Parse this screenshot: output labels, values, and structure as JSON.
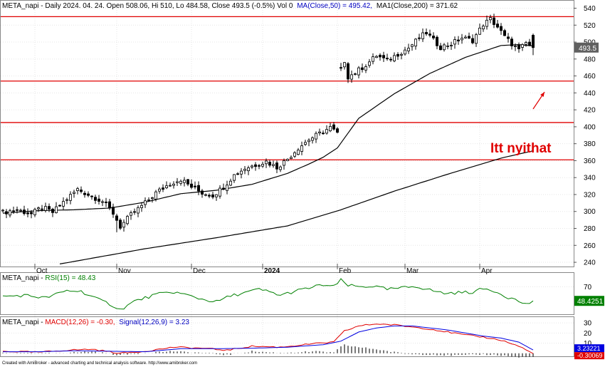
{
  "header": {
    "main_title": "META_napi - Daily 2024. 04. 24. Open 508.06, Hi 510, Lo 484.58, Close 493.5 (-0.5%) Vol 0",
    "ma50_text": "MA(Close,50) = 495.42,",
    "ma200_text": "MA1(Close,200) = 371.62",
    "rsi_title": "META_napi - ",
    "rsi_text": "RSI(15) = 48.43",
    "macd_title": "META_napi - ",
    "macd_text": "MACD(12,26) = -0.30,",
    "signal_text": "Signal(12,26,9) = 3.23"
  },
  "footer_text": "Created with AmiBroker - advanced charting and technical analysis software. http://www.amibroker.com",
  "colors": {
    "ma50": "#000000",
    "ma200": "#000000",
    "hline": "#e00000",
    "annotation": "#e00000",
    "rsi": "#008000",
    "macd": "#e00000",
    "signal": "#0000e0",
    "hist": "#202020",
    "label_blue": "#0000c0",
    "label_green": "#008000"
  },
  "chart_data": [
    {
      "type": "candlestick",
      "title": "META_napi - Daily",
      "ylim": [
        235,
        548
      ],
      "y_ticks": [
        240,
        260,
        280,
        300,
        320,
        340,
        360,
        380,
        400,
        420,
        440,
        460,
        480,
        500,
        520,
        540
      ],
      "x_labels": [
        {
          "label": "Oct",
          "index": 9
        },
        {
          "label": "Nov",
          "index": 32
        },
        {
          "label": "Dec",
          "index": 53
        },
        {
          "label": "2024",
          "index": 73,
          "bold": true
        },
        {
          "label": "Feb",
          "index": 94
        },
        {
          "label": "Mar",
          "index": 113
        },
        {
          "label": "Apr",
          "index": 134
        }
      ],
      "last_price_label": "493.5",
      "horizontal_lines": [
        530,
        454,
        405,
        361
      ],
      "annotation": {
        "text": "Itt nyithat",
        "arrow_from": [
          149,
          421
        ],
        "arrow_to": [
          151,
          441
        ]
      },
      "ohlc_keypoints": [
        [
          0,
          299
        ],
        [
          4,
          302
        ],
        [
          8,
          297
        ],
        [
          11,
          305
        ],
        [
          14,
          299
        ],
        [
          18,
          315
        ],
        [
          21,
          326
        ],
        [
          25,
          318
        ],
        [
          28,
          312
        ],
        [
          31,
          298
        ],
        [
          33,
          282
        ],
        [
          36,
          296
        ],
        [
          40,
          310
        ],
        [
          43,
          322
        ],
        [
          47,
          333
        ],
        [
          50,
          338
        ],
        [
          53,
          329
        ],
        [
          56,
          322
        ],
        [
          59,
          319
        ],
        [
          62,
          329
        ],
        [
          65,
          343
        ],
        [
          68,
          351
        ],
        [
          71,
          355
        ],
        [
          74,
          359
        ],
        [
          77,
          352
        ],
        [
          80,
          362
        ],
        [
          83,
          375
        ],
        [
          86,
          385
        ],
        [
          89,
          392
        ],
        [
          92,
          399
        ],
        [
          94,
          392
        ],
        [
          95,
          467
        ],
        [
          96,
          478
        ],
        [
          97,
          459
        ],
        [
          99,
          464
        ],
        [
          102,
          473
        ],
        [
          105,
          484
        ],
        [
          108,
          478
        ],
        [
          111,
          486
        ],
        [
          114,
          493
        ],
        [
          117,
          505
        ],
        [
          119,
          511
        ],
        [
          121,
          502
        ],
        [
          123,
          494
        ],
        [
          126,
          498
        ],
        [
          129,
          505
        ],
        [
          132,
          502
        ],
        [
          135,
          521
        ],
        [
          137,
          527
        ],
        [
          139,
          518
        ],
        [
          141,
          506
        ],
        [
          143,
          498
        ],
        [
          145,
          490
        ],
        [
          147,
          499
        ],
        [
          149,
          493.5
        ]
      ],
      "ma50_keypoints": [
        [
          0,
          298
        ],
        [
          10,
          301
        ],
        [
          20,
          302
        ],
        [
          30,
          304
        ],
        [
          40,
          311
        ],
        [
          50,
          321
        ],
        [
          60,
          325
        ],
        [
          70,
          332
        ],
        [
          80,
          345
        ],
        [
          86,
          356
        ],
        [
          90,
          364
        ],
        [
          94,
          375
        ],
        [
          100,
          410
        ],
        [
          110,
          439
        ],
        [
          120,
          463
        ],
        [
          130,
          482
        ],
        [
          140,
          496
        ],
        [
          145,
          497
        ],
        [
          149,
          495.42
        ]
      ],
      "ma200_keypoints": [
        [
          16,
          238
        ],
        [
          40,
          256
        ],
        [
          60,
          269
        ],
        [
          80,
          283
        ],
        [
          95,
          302
        ],
        [
          110,
          324
        ],
        [
          125,
          344
        ],
        [
          140,
          363
        ],
        [
          149,
          371.62
        ]
      ]
    },
    {
      "type": "line",
      "title": "RSI(15)",
      "ylim": [
        28,
        90
      ],
      "y_ticks": [
        70
      ],
      "value_label": "48.4251",
      "rsi_keypoints": [
        [
          0,
          55
        ],
        [
          6,
          57
        ],
        [
          12,
          53
        ],
        [
          18,
          64
        ],
        [
          22,
          63
        ],
        [
          27,
          50
        ],
        [
          30,
          44
        ],
        [
          33,
          35
        ],
        [
          37,
          48
        ],
        [
          43,
          58
        ],
        [
          48,
          62
        ],
        [
          52,
          57
        ],
        [
          56,
          51
        ],
        [
          60,
          47
        ],
        [
          64,
          56
        ],
        [
          68,
          61
        ],
        [
          72,
          66
        ],
        [
          75,
          62
        ],
        [
          78,
          57
        ],
        [
          82,
          63
        ],
        [
          86,
          68
        ],
        [
          90,
          73
        ],
        [
          93,
          70
        ],
        [
          95,
          80
        ],
        [
          97,
          72
        ],
        [
          100,
          70
        ],
        [
          104,
          71
        ],
        [
          108,
          66
        ],
        [
          112,
          68
        ],
        [
          116,
          71
        ],
        [
          120,
          65
        ],
        [
          124,
          60
        ],
        [
          128,
          61
        ],
        [
          132,
          62
        ],
        [
          135,
          67
        ],
        [
          138,
          64
        ],
        [
          142,
          54
        ],
        [
          145,
          48
        ],
        [
          147,
          43
        ],
        [
          149,
          48.43
        ]
      ]
    },
    {
      "type": "line",
      "title": "MACD(12,26)",
      "ylim": [
        -3,
        35
      ],
      "y_ticks": [
        10,
        20,
        30
      ],
      "value_labels": [
        "3.23221",
        "-0.30069"
      ],
      "macd_keypoints": [
        [
          0,
          2
        ],
        [
          10,
          1
        ],
        [
          18,
          3
        ],
        [
          25,
          4
        ],
        [
          33,
          0
        ],
        [
          40,
          2
        ],
        [
          48,
          6
        ],
        [
          56,
          5
        ],
        [
          63,
          3
        ],
        [
          70,
          7
        ],
        [
          78,
          6
        ],
        [
          86,
          9
        ],
        [
          93,
          11
        ],
        [
          96,
          22
        ],
        [
          100,
          27
        ],
        [
          105,
          29
        ],
        [
          110,
          28
        ],
        [
          115,
          26
        ],
        [
          120,
          24
        ],
        [
          125,
          21
        ],
        [
          130,
          18
        ],
        [
          135,
          16
        ],
        [
          140,
          13
        ],
        [
          145,
          7
        ],
        [
          149,
          -0.3
        ]
      ],
      "signal_keypoints": [
        [
          0,
          1.5
        ],
        [
          10,
          1.5
        ],
        [
          20,
          2.5
        ],
        [
          30,
          2
        ],
        [
          40,
          1.5
        ],
        [
          50,
          4.5
        ],
        [
          60,
          4.5
        ],
        [
          70,
          5
        ],
        [
          80,
          6
        ],
        [
          90,
          8.5
        ],
        [
          95,
          12
        ],
        [
          100,
          21
        ],
        [
          105,
          25
        ],
        [
          110,
          27
        ],
        [
          115,
          27
        ],
        [
          120,
          25
        ],
        [
          125,
          23
        ],
        [
          130,
          20
        ],
        [
          135,
          17
        ],
        [
          140,
          15
        ],
        [
          145,
          11
        ],
        [
          149,
          3.23
        ]
      ]
    }
  ]
}
